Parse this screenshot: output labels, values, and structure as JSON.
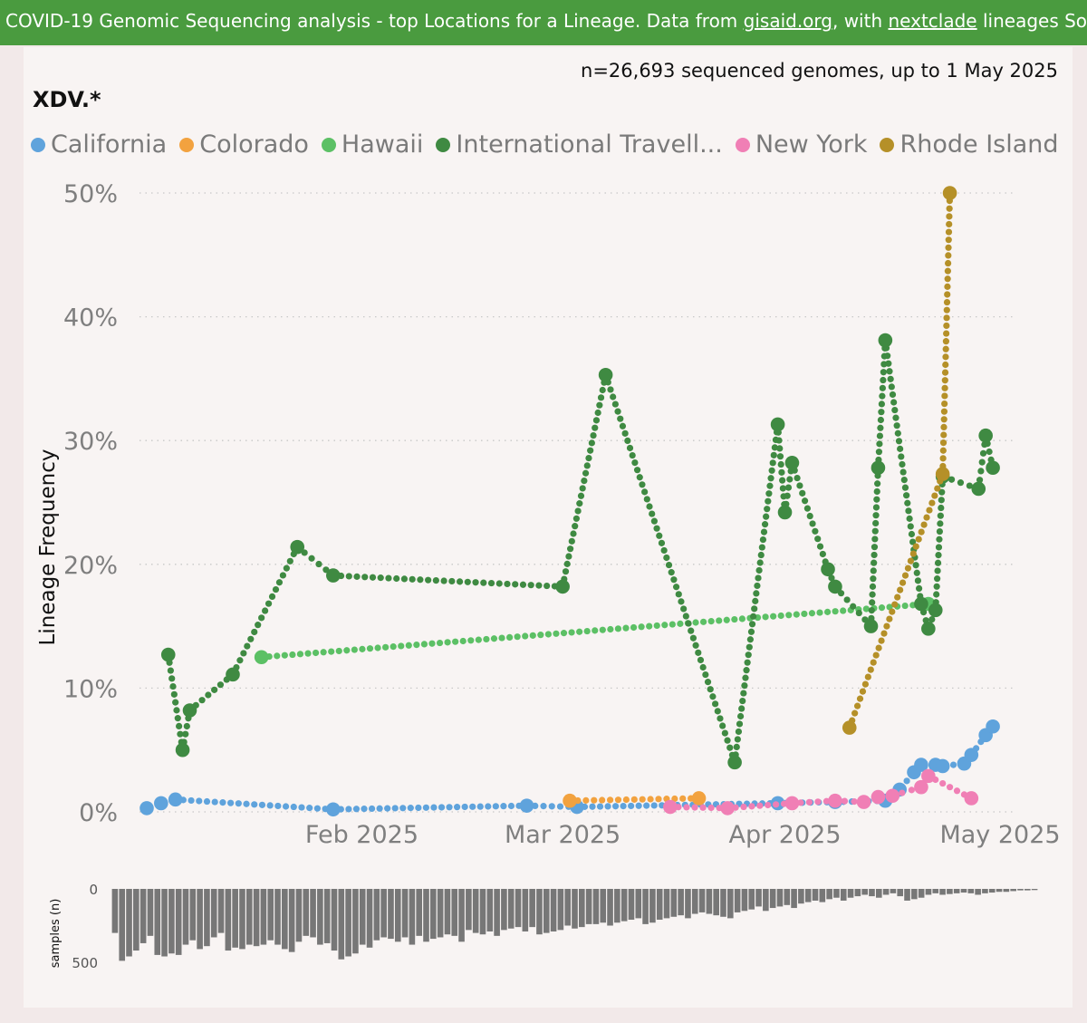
{
  "banner": {
    "prefix": "COVID-19 Genomic Sequencing analysis - top Locations for a Lineage. Data from ",
    "link1": "gisaid.org",
    "middle": ", with ",
    "link2": "nextclade",
    "suffix": " lineages Source fil"
  },
  "sample_count": "n=26,693 sequenced genomes, up to 1 May 2025",
  "lineage_title": "XDV.*",
  "colors": {
    "California": "#5fa3dc",
    "Colorado": "#f2a23f",
    "Hawaii": "#5cc065",
    "International Travell...": "#3f8a42",
    "New York": "#f07fb5",
    "Rhode Island": "#b59028",
    "bars": "#777777",
    "banner": "#4a9b3f"
  },
  "chart_data": {
    "type": "line",
    "ylabel": "Lineage Frequency",
    "ylim": [
      0,
      50
    ],
    "y_ticks": [
      "0%",
      "10%",
      "20%",
      "30%",
      "40%",
      "50%"
    ],
    "x_ticks": [
      {
        "label": "Feb 2025",
        "date": "2025-02-01"
      },
      {
        "label": "Mar 2025",
        "date": "2025-03-01"
      },
      {
        "label": "Apr 2025",
        "date": "2025-04-01"
      },
      {
        "label": "May 2025",
        "date": "2025-05-01"
      }
    ],
    "xlim": [
      "2025-01-02",
      "2025-05-01"
    ],
    "grid": true,
    "legend_position": "top",
    "series": [
      {
        "name": "California",
        "points": [
          [
            "2025-01-02",
            0.3
          ],
          [
            "2025-01-04",
            0.7
          ],
          [
            "2025-01-06",
            1.0
          ],
          [
            "2025-01-28",
            0.2
          ],
          [
            "2025-02-24",
            0.5
          ],
          [
            "2025-03-03",
            0.4
          ],
          [
            "2025-03-31",
            0.7
          ],
          [
            "2025-04-08",
            0.8
          ],
          [
            "2025-04-15",
            0.9
          ],
          [
            "2025-04-17",
            1.8
          ],
          [
            "2025-04-19",
            3.2
          ],
          [
            "2025-04-20",
            3.8
          ],
          [
            "2025-04-22",
            3.8
          ],
          [
            "2025-04-23",
            3.7
          ],
          [
            "2025-04-26",
            3.9
          ],
          [
            "2025-04-27",
            4.6
          ],
          [
            "2025-04-29",
            6.2
          ],
          [
            "2025-04-30",
            6.9
          ]
        ]
      },
      {
        "name": "Colorado",
        "points": [
          [
            "2025-03-02",
            0.9
          ],
          [
            "2025-03-20",
            1.1
          ]
        ]
      },
      {
        "name": "Hawaii",
        "points": [
          [
            "2025-01-18",
            12.5
          ],
          [
            "2025-04-21",
            16.8
          ]
        ]
      },
      {
        "name": "International Travell...",
        "points": [
          [
            "2025-01-05",
            12.7
          ],
          [
            "2025-01-07",
            5.0
          ],
          [
            "2025-01-08",
            8.2
          ],
          [
            "2025-01-14",
            11.1
          ],
          [
            "2025-01-23",
            21.4
          ],
          [
            "2025-01-28",
            19.1
          ],
          [
            "2025-03-01",
            18.2
          ],
          [
            "2025-03-07",
            35.3
          ],
          [
            "2025-03-25",
            4.0
          ],
          [
            "2025-03-31",
            31.3
          ],
          [
            "2025-04-01",
            24.2
          ],
          [
            "2025-04-02",
            28.2
          ],
          [
            "2025-04-07",
            19.6
          ],
          [
            "2025-04-08",
            18.2
          ],
          [
            "2025-04-13",
            15.0
          ],
          [
            "2025-04-14",
            27.8
          ],
          [
            "2025-04-15",
            38.1
          ],
          [
            "2025-04-20",
            16.8
          ],
          [
            "2025-04-21",
            14.8
          ],
          [
            "2025-04-22",
            16.3
          ],
          [
            "2025-04-23",
            27.1
          ],
          [
            "2025-04-28",
            26.1
          ],
          [
            "2025-04-29",
            30.4
          ],
          [
            "2025-04-30",
            27.8
          ]
        ]
      },
      {
        "name": "New York",
        "points": [
          [
            "2025-03-16",
            0.4
          ],
          [
            "2025-03-24",
            0.3
          ],
          [
            "2025-04-02",
            0.7
          ],
          [
            "2025-04-08",
            0.9
          ],
          [
            "2025-04-12",
            0.8
          ],
          [
            "2025-04-14",
            1.2
          ],
          [
            "2025-04-16",
            1.3
          ],
          [
            "2025-04-20",
            2.0
          ],
          [
            "2025-04-21",
            2.9
          ],
          [
            "2025-04-27",
            1.1
          ]
        ]
      },
      {
        "name": "Rhode Island",
        "points": [
          [
            "2025-04-10",
            6.8
          ],
          [
            "2025-04-23",
            27.3
          ],
          [
            "2025-04-24",
            50.0
          ]
        ]
      }
    ],
    "samples": {
      "ylabel": "samples (n)",
      "y_ticks": [
        "0",
        "500"
      ],
      "ylim": [
        0,
        500
      ],
      "values": [
        300,
        490,
        460,
        420,
        370,
        320,
        450,
        460,
        440,
        450,
        380,
        350,
        410,
        390,
        330,
        300,
        420,
        400,
        410,
        380,
        390,
        380,
        350,
        380,
        410,
        430,
        360,
        320,
        330,
        380,
        370,
        420,
        480,
        460,
        440,
        380,
        400,
        350,
        330,
        340,
        360,
        330,
        380,
        320,
        360,
        340,
        330,
        310,
        320,
        360,
        280,
        300,
        310,
        290,
        320,
        280,
        270,
        260,
        290,
        260,
        310,
        300,
        290,
        280,
        250,
        270,
        260,
        240,
        240,
        230,
        250,
        230,
        220,
        210,
        200,
        240,
        230,
        210,
        200,
        190,
        180,
        200,
        170,
        160,
        170,
        180,
        190,
        200,
        160,
        150,
        140,
        120,
        150,
        130,
        120,
        110,
        130,
        100,
        90,
        80,
        90,
        70,
        60,
        80,
        60,
        50,
        40,
        50,
        60,
        40,
        30,
        50,
        80,
        70,
        60,
        40,
        30,
        40,
        35,
        30,
        25,
        30,
        40,
        30,
        25,
        20,
        20,
        15,
        10,
        10,
        8
      ]
    }
  }
}
